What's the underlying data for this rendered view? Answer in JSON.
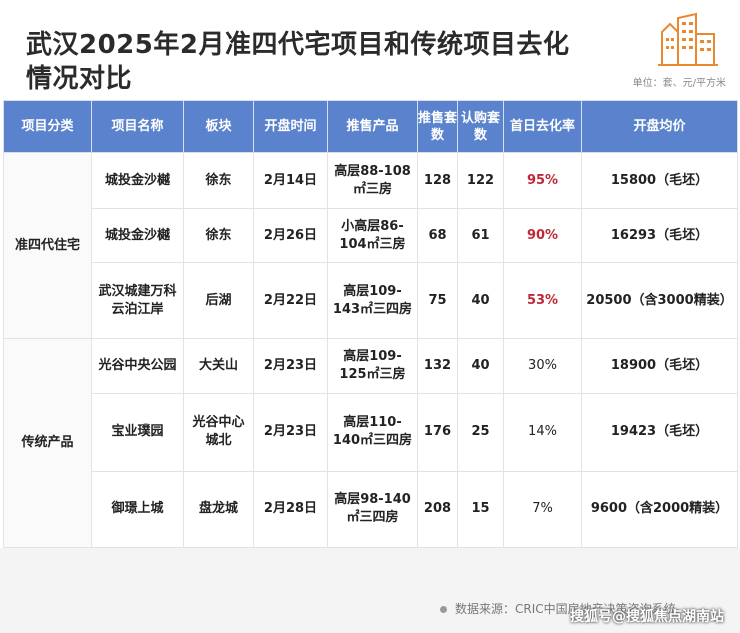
{
  "header": {
    "title_line1": "武汉2025年2月准四代宅项目和传统项目去化",
    "title_line2": "情况对比",
    "unit": "单位：套、元/平方米",
    "logo_icon": "building-icon",
    "accent_color": "#e8892f"
  },
  "table": {
    "columns": [
      "项目分类",
      "项目名称",
      "板块",
      "开盘时间",
      "推售产品",
      "推售套数",
      "认购套数",
      "首日去化率",
      "开盘均价"
    ],
    "groups": [
      {
        "category": "准四代住宅",
        "rows": [
          {
            "name": "城投金沙樾",
            "area": "徐东",
            "open_date": "2月14日",
            "product": "高层88-108㎡三房",
            "supply": "128",
            "subscribed": "122",
            "rate": "95%",
            "price": "15800（毛坯）"
          },
          {
            "name": "城投金沙樾",
            "area": "徐东",
            "open_date": "2月26日",
            "product": "小高层86-104㎡三房",
            "supply": "68",
            "subscribed": "61",
            "rate": "90%",
            "price": "16293（毛坯）"
          },
          {
            "name": "武汉城建万科云泊江岸",
            "area": "后湖",
            "open_date": "2月22日",
            "product": "高层109-143㎡三四房",
            "supply": "75",
            "subscribed": "40",
            "rate": "53%",
            "price": "20500（含3000精装）"
          }
        ]
      },
      {
        "category": "传统产品",
        "rows": [
          {
            "name": "光谷中央公园",
            "area": "大关山",
            "open_date": "2月23日",
            "product": "高层109-125㎡三房",
            "supply": "132",
            "subscribed": "40",
            "rate": "30%",
            "price": "18900（毛坯）"
          },
          {
            "name": "宝业璞园",
            "area": "光谷中心城北",
            "open_date": "2月23日",
            "product": "高层110-140㎡三四房",
            "supply": "176",
            "subscribed": "25",
            "rate": "14%",
            "price": "19423（毛坯）"
          },
          {
            "name": "御璟上城",
            "area": "盘龙城",
            "open_date": "2月28日",
            "product": "高层98-140㎡三四房",
            "supply": "208",
            "subscribed": "15",
            "rate": "7%",
            "price": "9600（含2000精装）"
          }
        ]
      }
    ],
    "header_color": "#5b82cc",
    "highlight_color": "#c0283a"
  },
  "footer": {
    "source": "数据来源：CRIC中国房地产决策咨询系统",
    "watermark": "搜狐号@搜狐焦点湖南站"
  }
}
